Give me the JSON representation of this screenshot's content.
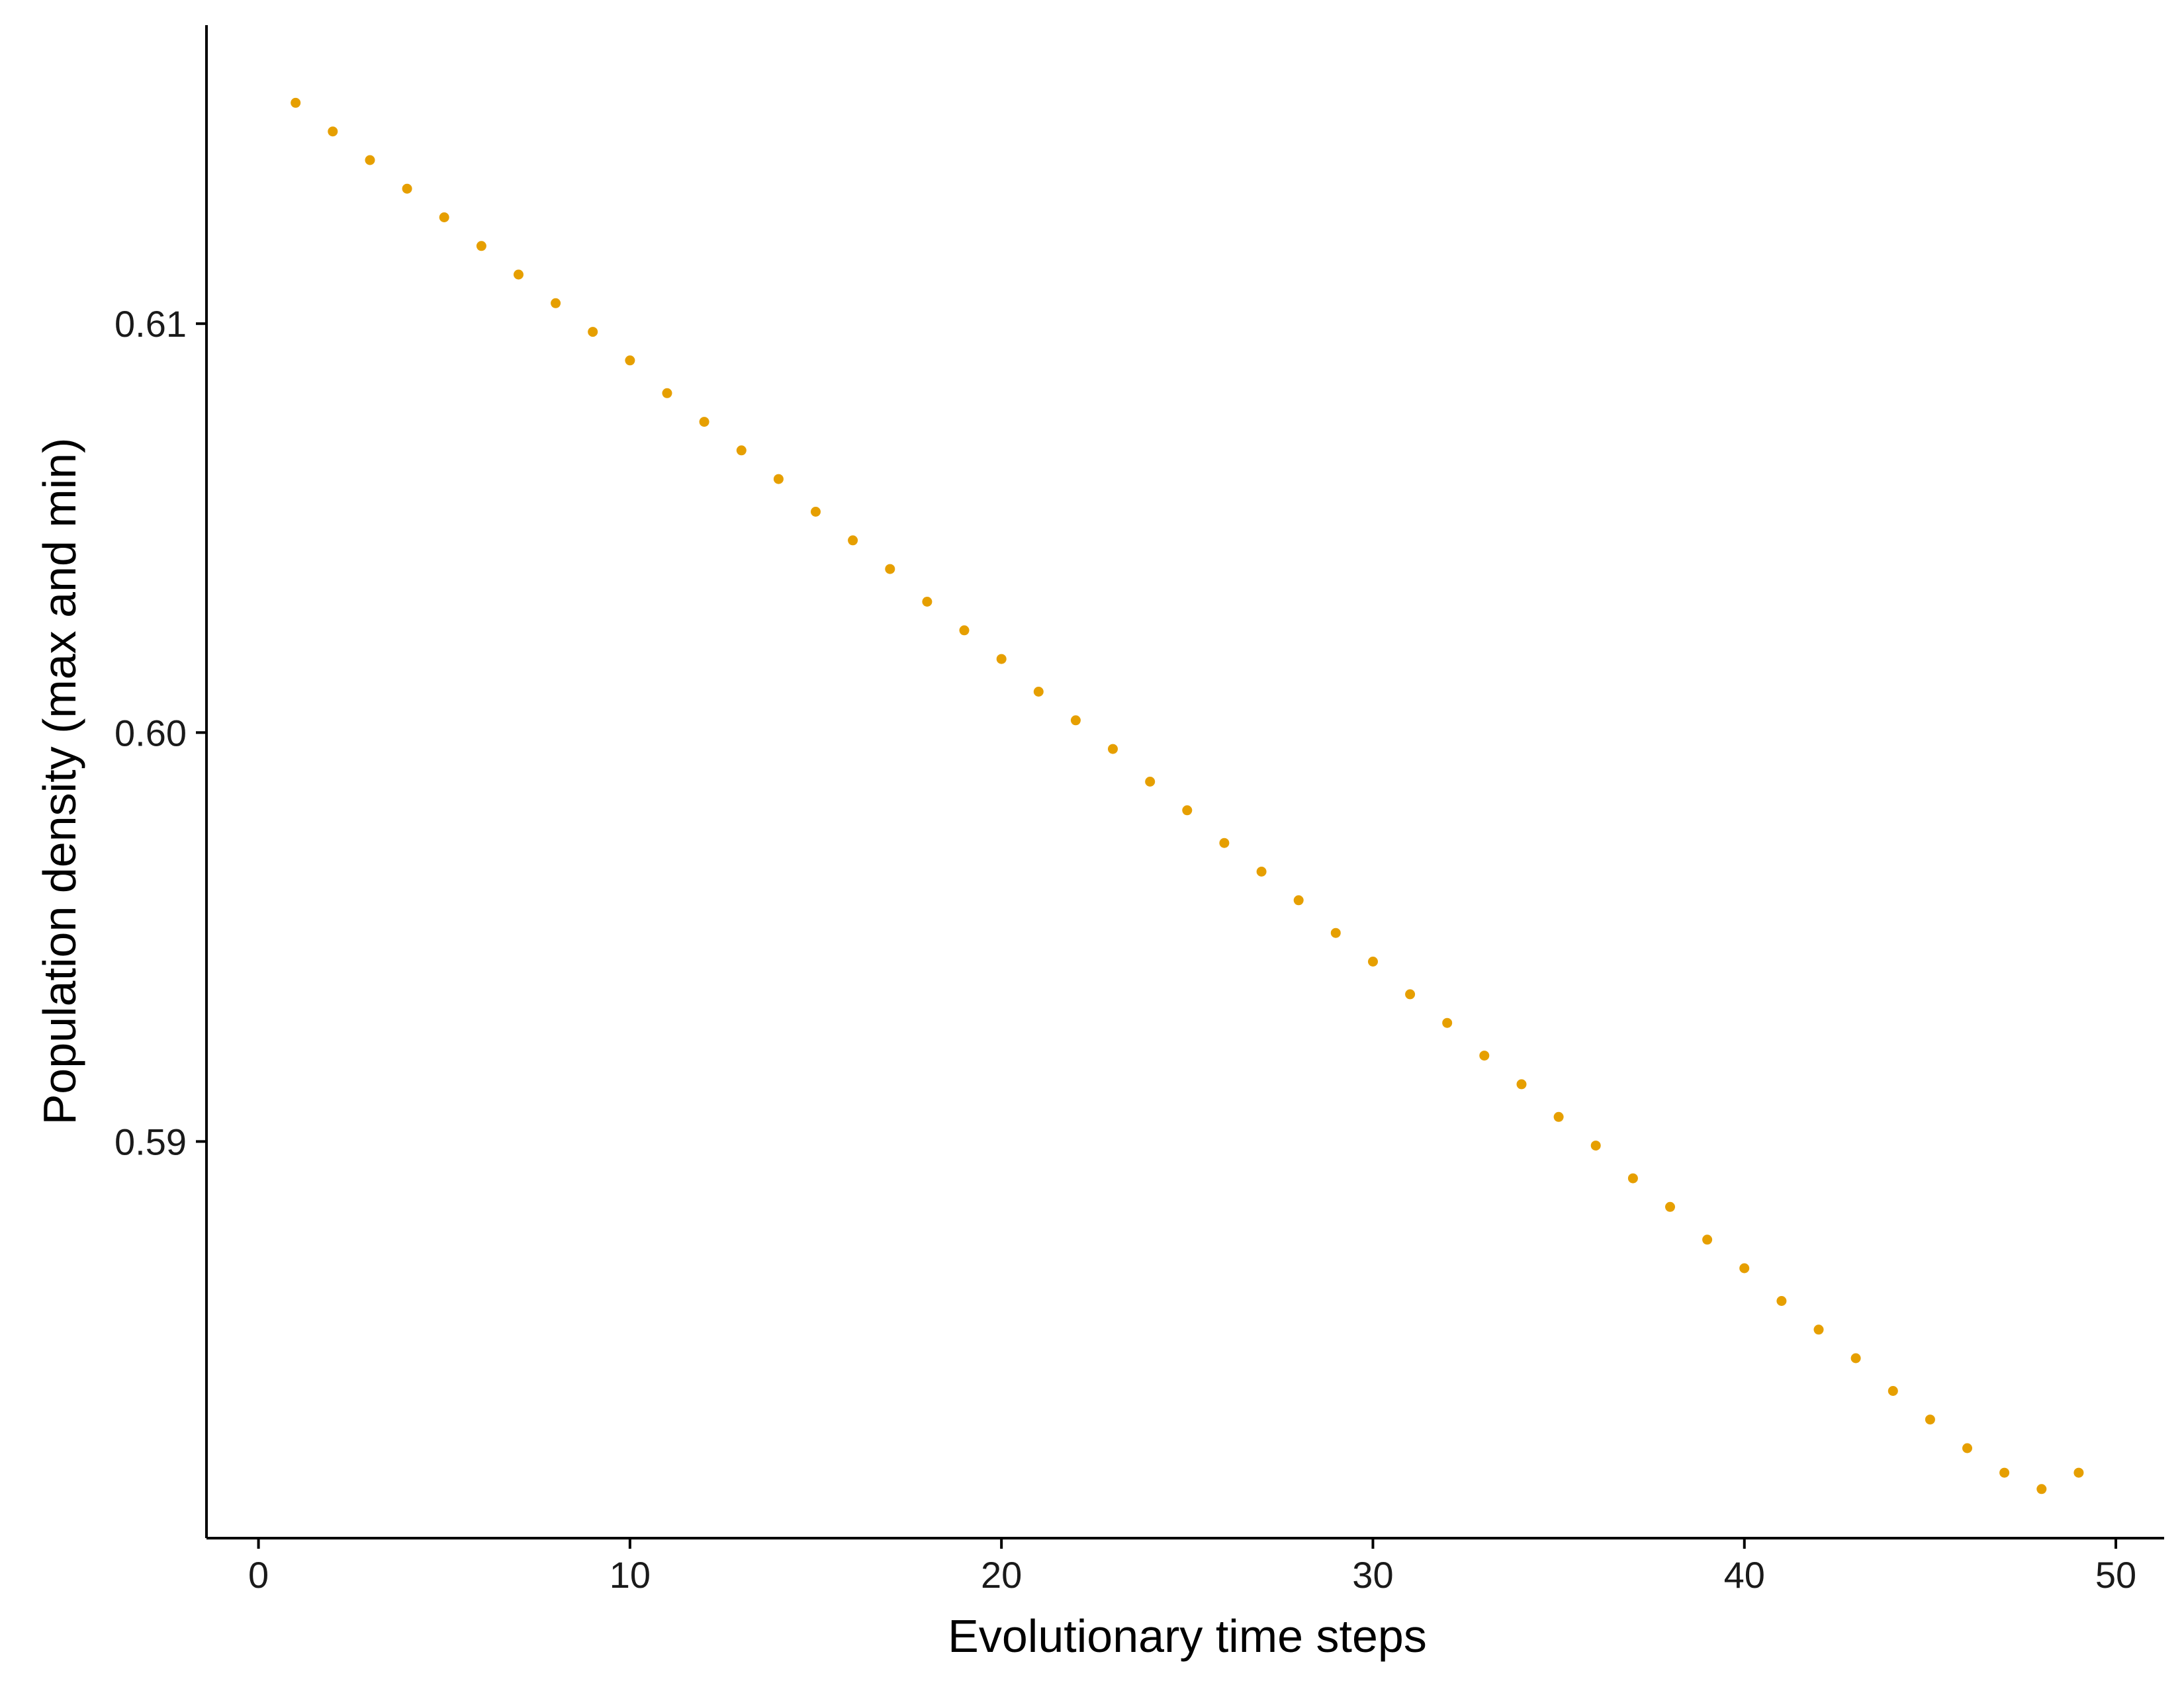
{
  "chart_data": {
    "type": "scatter",
    "title": "",
    "xlabel": "Evolutionary time steps",
    "ylabel": "Population density (max and min)",
    "xlim": [
      -1.4,
      51.3
    ],
    "ylim": [
      0.5803,
      0.6173
    ],
    "xticks": [
      0,
      10,
      20,
      30,
      40,
      50
    ],
    "xtick_labels": [
      "0",
      "10",
      "20",
      "30",
      "40",
      "50"
    ],
    "yticks": [
      0.59,
      0.6,
      0.61
    ],
    "ytick_labels": [
      "0.59",
      "0.60",
      "0.61"
    ],
    "grid": false,
    "legend": "none",
    "marker_color": "#E69F00",
    "series": [
      {
        "x": [
          1,
          2,
          3,
          4,
          5,
          6,
          7,
          8,
          9,
          10,
          11,
          12,
          13,
          14,
          15,
          16,
          17,
          18,
          19,
          20,
          21,
          22,
          23,
          24,
          25,
          26,
          27,
          28,
          29,
          30,
          31,
          32,
          33,
          34,
          35,
          36,
          37,
          38,
          39,
          40,
          41,
          42,
          43,
          44,
          45,
          46,
          47,
          48,
          49
        ],
        "y": [
          0.6154,
          0.6147,
          0.614,
          0.6133,
          0.6126,
          0.6119,
          0.6112,
          0.6105,
          0.6098,
          0.6091,
          0.6083,
          0.6076,
          0.6069,
          0.6062,
          0.6054,
          0.6047,
          0.604,
          0.6032,
          0.6025,
          0.6018,
          0.601,
          0.6003,
          0.5996,
          0.5988,
          0.5981,
          0.5973,
          0.5966,
          0.5959,
          0.5951,
          0.5944,
          0.5936,
          0.5929,
          0.5921,
          0.5914,
          0.5906,
          0.5899,
          0.5891,
          0.5884,
          0.5876,
          0.5869,
          0.5861,
          0.5854,
          0.5847,
          0.5839,
          0.5832,
          0.5825,
          0.5819,
          0.5815,
          0.5819
        ]
      }
    ]
  }
}
